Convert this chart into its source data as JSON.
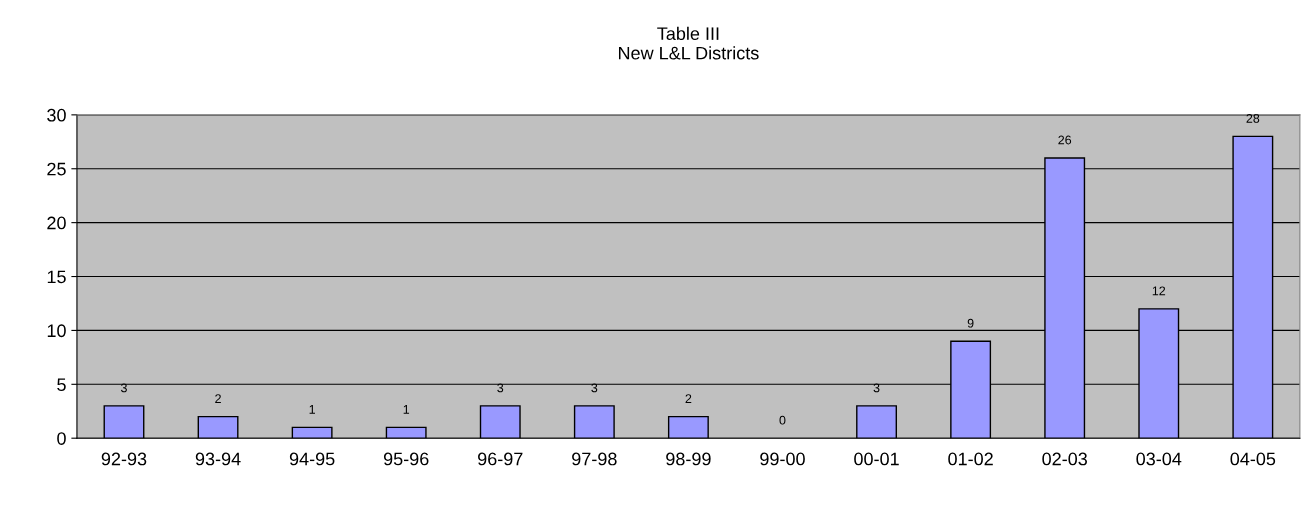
{
  "chart_data": {
    "type": "bar",
    "title": "Table III\nNew L&L Districts",
    "categories": [
      "92-93",
      "93-94",
      "94-95",
      "95-96",
      "96-97",
      "97-98",
      "98-99",
      "99-00",
      "00-01",
      "01-02",
      "02-03",
      "03-04",
      "04-05"
    ],
    "values": [
      3,
      2,
      1,
      1,
      3,
      3,
      2,
      0,
      3,
      9,
      26,
      12,
      28
    ],
    "color": "#9999ff",
    "ylim": [
      0,
      30
    ],
    "yticks": [
      0,
      5,
      10,
      15,
      20,
      25,
      30
    ],
    "grid": "y",
    "data_labels": true
  }
}
